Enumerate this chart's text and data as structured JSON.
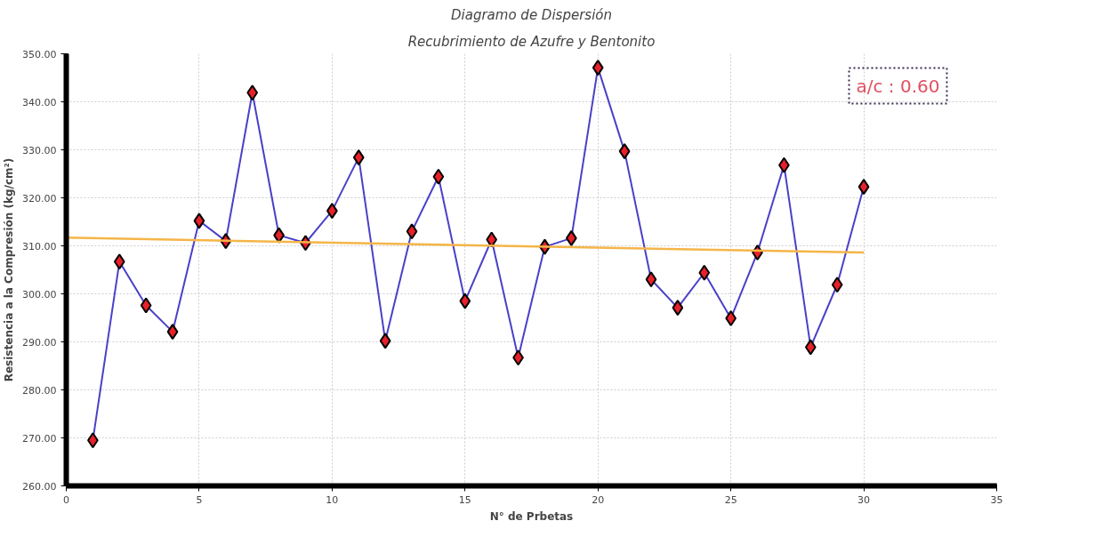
{
  "chart_data": {
    "type": "line",
    "title": "Diagramo de Dispersión",
    "subtitle": "Recubrimiento de Azufre y Bentonito",
    "xlabel": "N° de Prbetas",
    "ylabel": "Resistencia a la Compresión (kg/cm²)",
    "annotations": [
      "a/c : 0.60"
    ],
    "x": [
      1,
      2,
      3,
      4,
      5,
      6,
      7,
      8,
      9,
      10,
      11,
      12,
      13,
      14,
      15,
      16,
      17,
      18,
      19,
      20,
      21,
      22,
      23,
      24,
      25,
      26,
      27,
      28,
      29,
      30
    ],
    "series": [
      {
        "color": "#4a40c8",
        "marker": "diamond",
        "values": [
          269.5,
          306.7,
          297.6,
          292.1,
          315.2,
          311.0,
          341.9,
          312.2,
          310.6,
          317.3,
          328.4,
          290.2,
          313.0,
          324.4,
          298.5,
          311.3,
          286.7,
          309.8,
          311.6,
          347.1,
          329.7,
          303.0,
          297.1,
          304.4,
          294.9,
          308.6,
          326.8,
          288.9,
          301.9,
          322.3
        ]
      },
      {
        "type": "line",
        "color": "#f5b548",
        "marker": "none",
        "x": [
          0,
          30
        ],
        "values": [
          311.7,
          308.6
        ]
      }
    ],
    "xlim": [
      0,
      35
    ],
    "xticks": [
      0,
      5,
      10,
      15,
      20,
      25,
      30,
      35
    ],
    "ylim": [
      260,
      350
    ],
    "yticks": [
      {
        "value": 260,
        "label": "260.00"
      },
      {
        "value": 270,
        "label": "270.00"
      },
      {
        "value": 280,
        "label": "280.00"
      },
      {
        "value": 290,
        "label": "290.00"
      },
      {
        "value": 300,
        "label": "300.00"
      },
      {
        "value": 310,
        "label": "310.00"
      },
      {
        "value": 320,
        "label": "320.00"
      },
      {
        "value": 330,
        "label": "330.00"
      },
      {
        "value": 340,
        "label": "340.00"
      },
      {
        "value": 350,
        "label": "350.00"
      }
    ],
    "grid": true
  }
}
